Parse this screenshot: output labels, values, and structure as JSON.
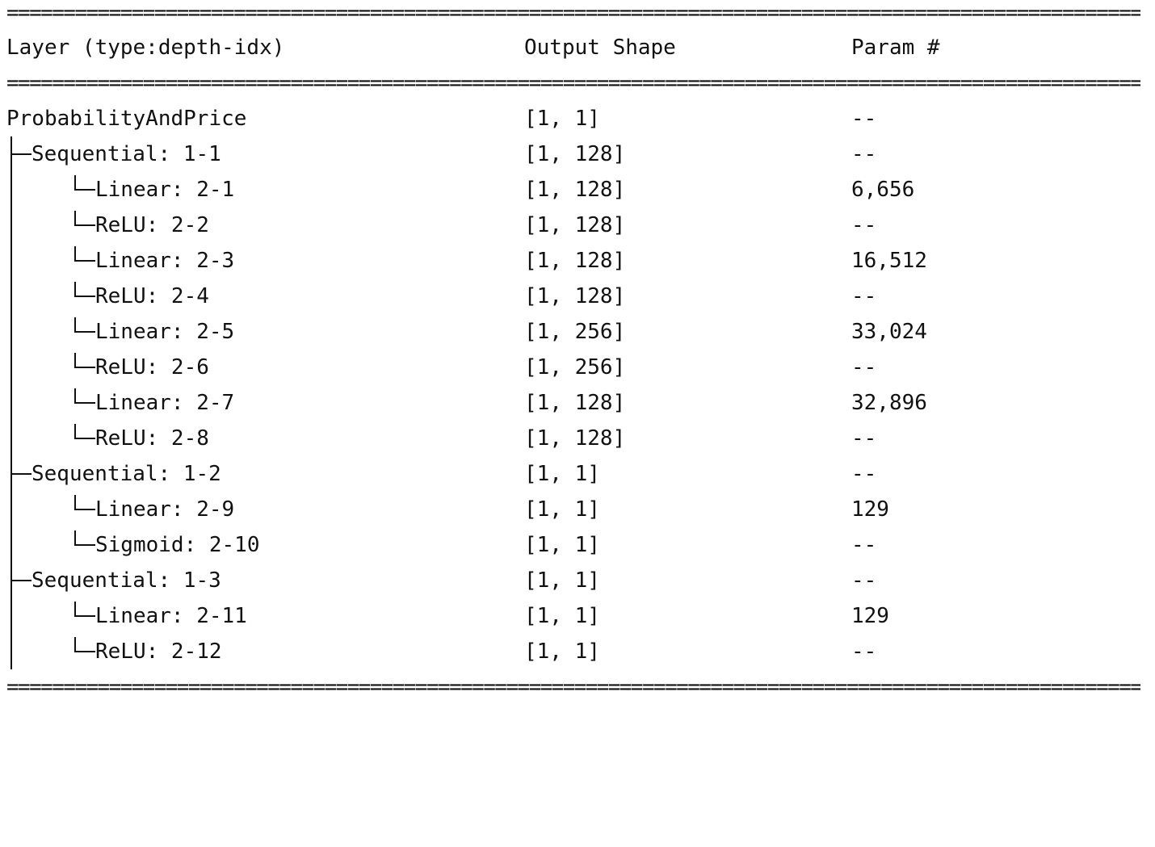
{
  "rules": {
    "top": "=========================================================================================================================",
    "mid": "=========================================================================================================================",
    "bottom": "========================================================================================================================="
  },
  "header": {
    "layer": "Layer (type:depth-idx)",
    "shape": "Output Shape",
    "param": "Param #"
  },
  "rows": [
    {
      "label": "ProbabilityAndPrice",
      "shape": "[1, 1]",
      "param": "--"
    },
    {
      "label": "Sequential: 1-1",
      "shape": "[1, 128]",
      "param": "--"
    },
    {
      "label": "Linear: 2-1",
      "shape": "[1, 128]",
      "param": "6,656"
    },
    {
      "label": "ReLU: 2-2",
      "shape": "[1, 128]",
      "param": "--"
    },
    {
      "label": "Linear: 2-3",
      "shape": "[1, 128]",
      "param": "16,512"
    },
    {
      "label": "ReLU: 2-4",
      "shape": "[1, 128]",
      "param": "--"
    },
    {
      "label": "Linear: 2-5",
      "shape": "[1, 256]",
      "param": "33,024"
    },
    {
      "label": "ReLU: 2-6",
      "shape": "[1, 256]",
      "param": "--"
    },
    {
      "label": "Linear: 2-7",
      "shape": "[1, 128]",
      "param": "32,896"
    },
    {
      "label": "ReLU: 2-8",
      "shape": "[1, 128]",
      "param": "--"
    },
    {
      "label": "Sequential: 1-2",
      "shape": "[1, 1]",
      "param": "--"
    },
    {
      "label": "Linear: 2-9",
      "shape": "[1, 1]",
      "param": "129"
    },
    {
      "label": "Sigmoid: 2-10",
      "shape": "[1, 1]",
      "param": "--"
    },
    {
      "label": "Sequential: 1-3",
      "shape": "[1, 1]",
      "param": "--"
    },
    {
      "label": "Linear: 2-11",
      "shape": "[1, 1]",
      "param": "129"
    },
    {
      "label": "ReLU: 2-12",
      "shape": "[1, 1]",
      "param": "--"
    }
  ]
}
